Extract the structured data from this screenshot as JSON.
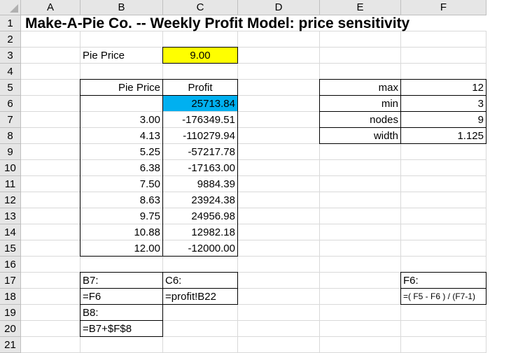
{
  "columns": [
    "A",
    "B",
    "C",
    "D",
    "E",
    "F"
  ],
  "rows": [
    "1",
    "2",
    "3",
    "4",
    "5",
    "6",
    "7",
    "8",
    "9",
    "10",
    "11",
    "12",
    "13",
    "14",
    "15",
    "16",
    "17",
    "18",
    "19",
    "20",
    "21"
  ],
  "title": "Make-A-Pie Co. -- Weekly Profit Model: price sensitivity",
  "input": {
    "label": "Pie Price",
    "value": "9.00",
    "fill": "#ffff00"
  },
  "table": {
    "headers": [
      "Pie Price",
      "Profit"
    ],
    "first_profit": "25713.84",
    "first_fill": "#00b0f0",
    "rows": [
      [
        "3.00",
        "-176349.51"
      ],
      [
        "4.13",
        "-110279.94"
      ],
      [
        "5.25",
        "-57217.78"
      ],
      [
        "6.38",
        "-17163.00"
      ],
      [
        "7.50",
        "9884.39"
      ],
      [
        "8.63",
        "23924.38"
      ],
      [
        "9.75",
        "24956.98"
      ],
      [
        "10.88",
        "12982.18"
      ],
      [
        "12.00",
        "-12000.00"
      ]
    ]
  },
  "params": [
    [
      "max",
      "12"
    ],
    [
      "min",
      "3"
    ],
    [
      "nodes",
      "9"
    ],
    [
      "width",
      "1.125"
    ]
  ],
  "notes": {
    "b7_label": "B7:",
    "b7_formula": "=F6",
    "c6_label": "C6:",
    "c6_formula": "=profit!B22",
    "b8_label": "B8:",
    "b8_formula": "=B7+$F$8",
    "f6_label": "F6:",
    "f6_formula": "=( F5 - F6 ) / (F7-1)"
  }
}
